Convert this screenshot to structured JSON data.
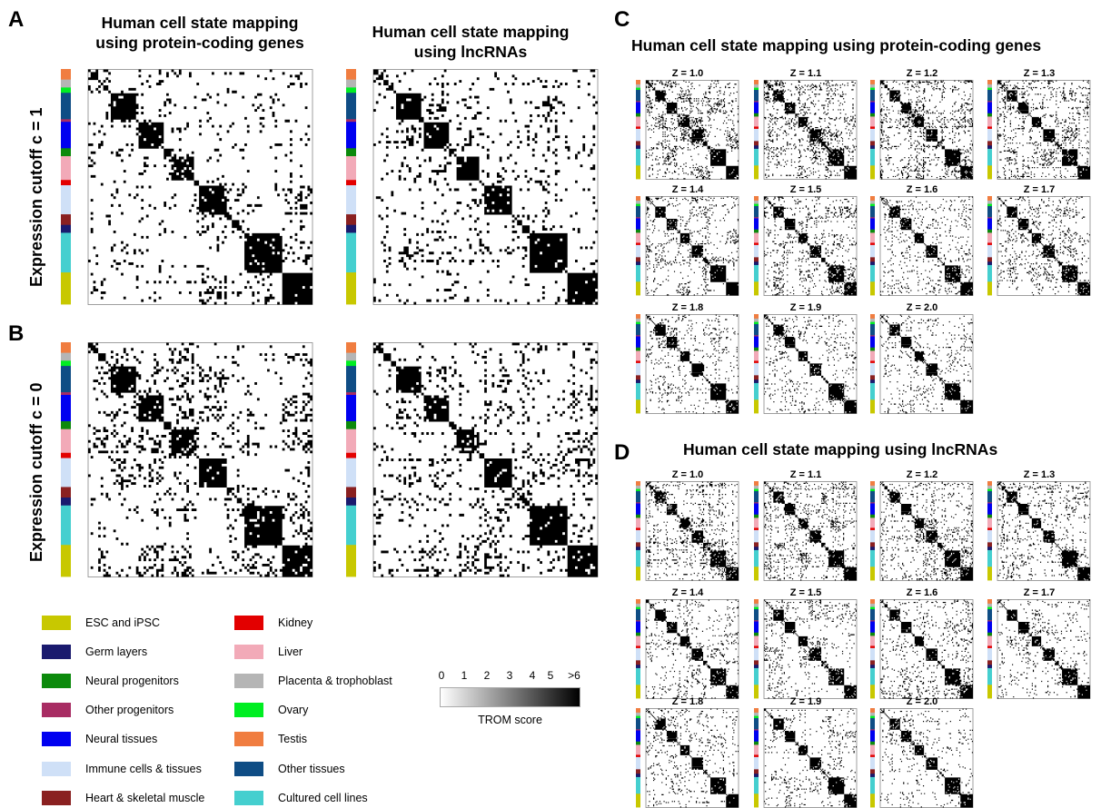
{
  "panels": {
    "A": "A",
    "B": "B",
    "C": "C",
    "D": "D"
  },
  "titles": {
    "a_left": [
      "Human cell state mapping",
      "using protein-coding genes"
    ],
    "a_right": [
      "Human cell state mapping",
      "using lncRNAs"
    ],
    "c": "Human cell state mapping using protein-coding genes",
    "d": "Human cell state mapping using lncRNAs"
  },
  "row_labels": {
    "a": "Expression cutoff c = 1",
    "b": "Expression cutoff c = 0"
  },
  "z_labels": [
    "Z = 1.0",
    "Z = 1.1",
    "Z = 1.2",
    "Z = 1.3",
    "Z = 1.4",
    "Z = 1.5",
    "Z = 1.6",
    "Z = 1.7",
    "Z = 1.8",
    "Z = 1.9",
    "Z = 2.0"
  ],
  "legend": [
    {
      "label": "ESC and iPSC",
      "color": "#c8c800"
    },
    {
      "label": "Germ layers",
      "color": "#1a1a6e"
    },
    {
      "label": "Neural progenitors",
      "color": "#0c8a0c"
    },
    {
      "label": "Other progenitors",
      "color": "#a82c63"
    },
    {
      "label": "Neural tissues",
      "color": "#0000f0"
    },
    {
      "label": "Immune cells & tissues",
      "color": "#cfe0f7"
    },
    {
      "label": "Heart & skeletal muscle",
      "color": "#8a2020"
    },
    {
      "label": "Kidney",
      "color": "#e30000"
    },
    {
      "label": "Liver",
      "color": "#f2aab8"
    },
    {
      "label": "Placenta & trophoblast",
      "color": "#b5b5b5"
    },
    {
      "label": "Ovary",
      "color": "#00ee22"
    },
    {
      "label": "Testis",
      "color": "#f07d40"
    },
    {
      "label": "Other tissues",
      "color": "#0f4d85"
    },
    {
      "label": "Cultured cell lines",
      "color": "#45cfcf"
    }
  ],
  "colorbar": {
    "ticks": [
      "0",
      "1",
      "2",
      "3",
      "4",
      "5",
      ">6"
    ],
    "label": "TROM score"
  },
  "chart_data": {
    "type": "heatmap",
    "cell_state_order_top_to_bottom": [
      "Testis",
      "Placenta & trophoblast",
      "Ovary",
      "Other tissues",
      "Other progenitors",
      "Neural tissues",
      "Neural progenitors",
      "Liver",
      "Kidney",
      "Immune cells & tissues",
      "Heart & skeletal muscle",
      "Germ layers",
      "Cultured cell lines",
      "ESC and iPSC"
    ],
    "cell_state_group_sizes": [
      4,
      3,
      2,
      10,
      1,
      10,
      3,
      9,
      2,
      11,
      4,
      3,
      15,
      12
    ],
    "value_range": [
      0,
      6
    ],
    "colorscale": [
      "#ffffff",
      "#000000"
    ]
  }
}
